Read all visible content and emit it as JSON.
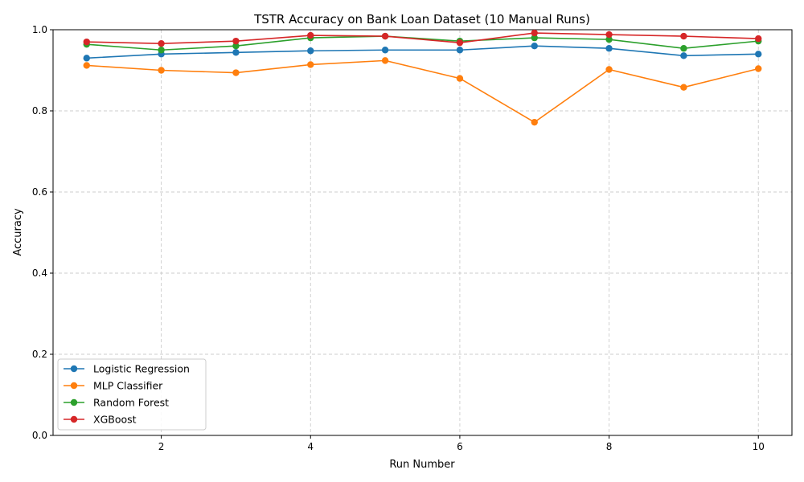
{
  "chart_data": {
    "type": "line",
    "title": "TSTR Accuracy on Bank Loan Dataset (10 Manual Runs)",
    "xlabel": "Run Number",
    "ylabel": "Accuracy",
    "xlim": [
      0.55,
      10.45
    ],
    "ylim": [
      0,
      1
    ],
    "xticks": [
      2,
      4,
      6,
      8,
      10
    ],
    "yticks": [
      0.0,
      0.2,
      0.4,
      0.6,
      0.8,
      1.0
    ],
    "ytick_labels": [
      "0.0",
      "0.2",
      "0.4",
      "0.6",
      "0.8",
      "1.0"
    ],
    "grid": true,
    "legend_position": "lower-left",
    "x": [
      1,
      2,
      3,
      4,
      5,
      6,
      7,
      8,
      9,
      10
    ],
    "series": [
      {
        "name": "Logistic Regression",
        "color": "#1f77b4",
        "values": [
          0.93,
          0.94,
          0.944,
          0.948,
          0.95,
          0.95,
          0.96,
          0.954,
          0.936,
          0.94
        ]
      },
      {
        "name": "MLP Classifier",
        "color": "#ff7f0e",
        "values": [
          0.912,
          0.9,
          0.894,
          0.914,
          0.924,
          0.88,
          0.772,
          0.902,
          0.858,
          0.904
        ]
      },
      {
        "name": "Random Forest",
        "color": "#2ca02c",
        "values": [
          0.964,
          0.95,
          0.96,
          0.98,
          0.984,
          0.972,
          0.98,
          0.976,
          0.954,
          0.972
        ]
      },
      {
        "name": "XGBoost",
        "color": "#d62728",
        "values": [
          0.97,
          0.966,
          0.972,
          0.986,
          0.984,
          0.968,
          0.992,
          0.988,
          0.984,
          0.978
        ]
      }
    ]
  }
}
